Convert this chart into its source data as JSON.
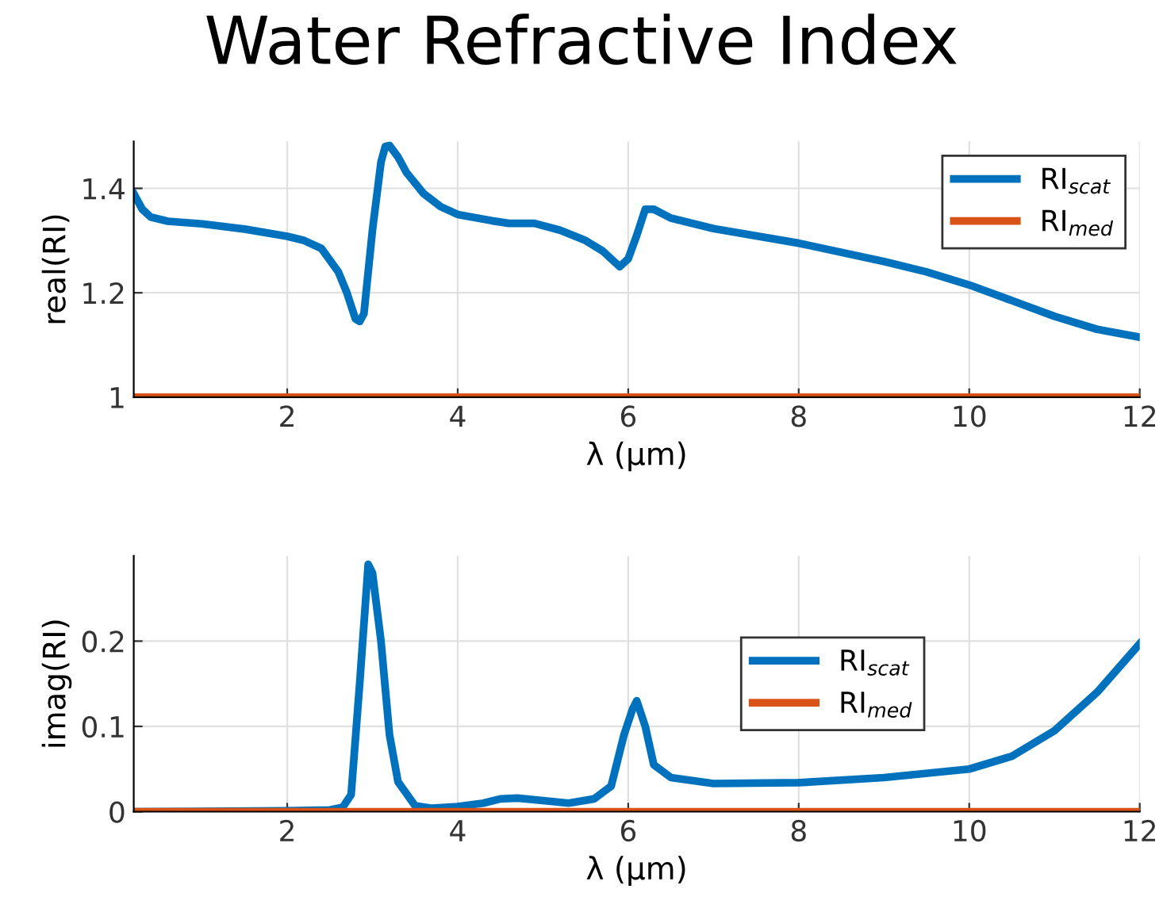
{
  "chart_data": [
    {
      "type": "line",
      "title": "Water Refractive Index",
      "xlabel": "λ (μm)",
      "ylabel": "real(RI)",
      "xlim": [
        0.2,
        12
      ],
      "xticks": [
        2,
        4,
        6,
        8,
        10,
        12
      ],
      "ylim": [
        1,
        1.49
      ],
      "yticks": [
        1,
        1.2,
        1.4
      ],
      "grid": true,
      "legend": "top right",
      "line_style": "solid",
      "marker": "none",
      "series": [
        {
          "name": "RI$_{scat}$",
          "color": "#0072bd",
          "x": [
            0.2,
            0.3,
            0.4,
            0.6,
            1,
            1.5,
            2,
            2.2,
            2.4,
            2.6,
            2.7,
            2.8,
            2.85,
            2.9,
            3.0,
            3.1,
            3.15,
            3.2,
            3.3,
            3.4,
            3.6,
            3.8,
            4.0,
            4.4,
            4.6,
            4.9,
            5.2,
            5.5,
            5.7,
            5.9,
            6.0,
            6.1,
            6.2,
            6.3,
            6.5,
            7,
            8,
            9,
            9.5,
            10,
            10.5,
            11,
            11.5,
            12
          ],
          "values": [
            1.39,
            1.36,
            1.345,
            1.337,
            1.332,
            1.322,
            1.308,
            1.3,
            1.285,
            1.24,
            1.2,
            1.15,
            1.145,
            1.16,
            1.32,
            1.45,
            1.48,
            1.482,
            1.46,
            1.43,
            1.39,
            1.365,
            1.35,
            1.338,
            1.333,
            1.333,
            1.32,
            1.3,
            1.28,
            1.25,
            1.265,
            1.31,
            1.36,
            1.36,
            1.343,
            1.323,
            1.295,
            1.26,
            1.24,
            1.215,
            1.185,
            1.155,
            1.13,
            1.115
          ]
        },
        {
          "name": "RI$_{med}$",
          "color": "#d95319",
          "x": [
            0.2,
            12
          ],
          "values": [
            1,
            1
          ]
        }
      ]
    },
    {
      "type": "line",
      "xlabel": "λ (μm)",
      "ylabel": "imag(RI)",
      "xlim": [
        0.2,
        12
      ],
      "xticks": [
        2,
        4,
        6,
        8,
        10,
        12
      ],
      "ylim": [
        0,
        0.3
      ],
      "yticks": [
        0,
        0.1,
        0.2
      ],
      "grid": true,
      "legend": "right",
      "line_style": "solid",
      "marker": "none",
      "series": [
        {
          "name": "RI$_{scat}$",
          "color": "#0072bd",
          "x": [
            0.2,
            2,
            2.5,
            2.65,
            2.75,
            2.85,
            2.95,
            3.0,
            3.1,
            3.2,
            3.3,
            3.5,
            3.7,
            4.0,
            4.3,
            4.5,
            4.7,
            5.0,
            5.3,
            5.6,
            5.8,
            5.95,
            6.05,
            6.1,
            6.2,
            6.3,
            6.5,
            7,
            8,
            9,
            10,
            10.5,
            11,
            11.5,
            12
          ],
          "values": [
            0,
            0.001,
            0.002,
            0.005,
            0.02,
            0.15,
            0.29,
            0.28,
            0.2,
            0.09,
            0.035,
            0.007,
            0.004,
            0.006,
            0.01,
            0.015,
            0.016,
            0.013,
            0.01,
            0.015,
            0.03,
            0.09,
            0.12,
            0.13,
            0.1,
            0.055,
            0.04,
            0.033,
            0.034,
            0.04,
            0.05,
            0.065,
            0.095,
            0.14,
            0.197
          ]
        },
        {
          "name": "RI$_{med}$",
          "color": "#d95319",
          "x": [
            0.2,
            12
          ],
          "values": [
            0,
            0
          ]
        }
      ]
    }
  ]
}
